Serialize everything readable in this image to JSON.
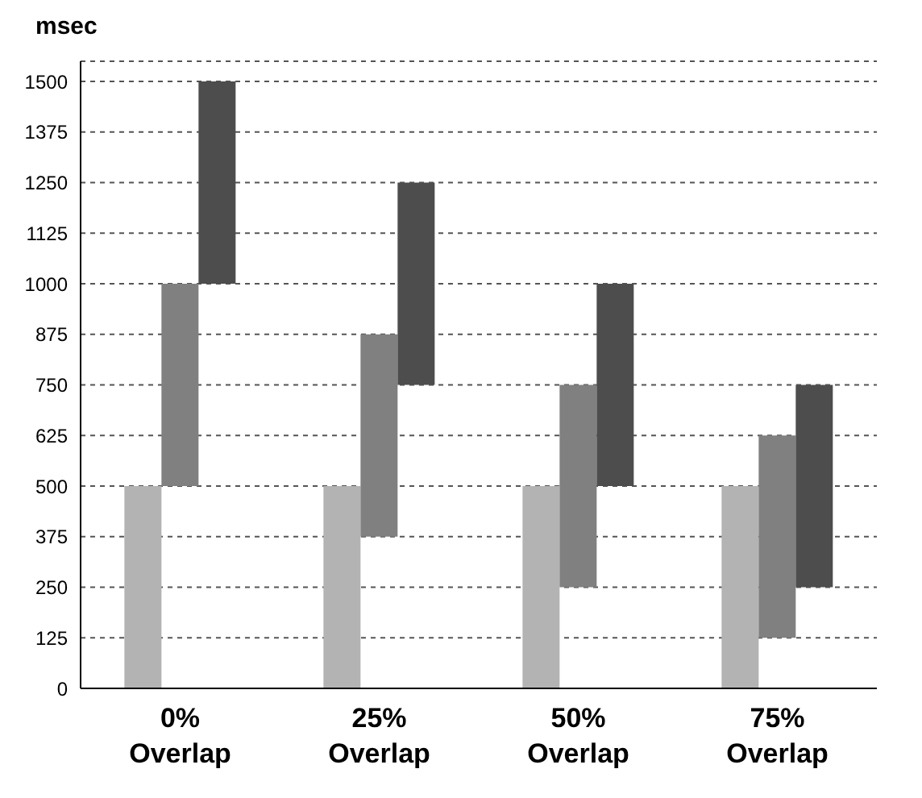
{
  "chart_data": {
    "type": "bar",
    "ylabel": "msec",
    "categories": [
      "0% Overlap",
      "25% Overlap",
      "50% Overlap",
      "75% Overlap"
    ],
    "series": [
      {
        "color": "#b3b3b3",
        "base": [
          0,
          0,
          0,
          0
        ],
        "values": [
          500,
          500,
          500,
          500
        ]
      },
      {
        "color": "#808080",
        "base": [
          500,
          375,
          250,
          125
        ],
        "values": [
          500,
          500,
          500,
          500
        ]
      },
      {
        "color": "#4d4d4d",
        "base": [
          1000,
          750,
          500,
          250
        ],
        "values": [
          500,
          500,
          500,
          500
        ]
      }
    ],
    "ylim": [
      0,
      1550
    ],
    "yticks": [
      0,
      125,
      250,
      375,
      500,
      625,
      750,
      875,
      1000,
      1125,
      1250,
      1375,
      1500
    ],
    "grid": "y",
    "line_style": "dashed",
    "legend": false
  }
}
